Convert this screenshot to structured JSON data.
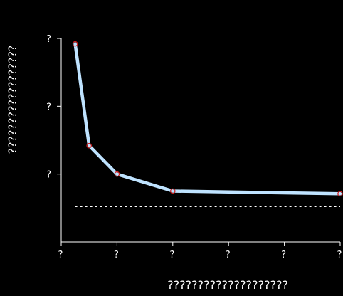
{
  "chart_data": {
    "type": "line",
    "title": "",
    "xlabel": "????????????????????",
    "ylabel": "??????????????????",
    "x_tick_labels": [
      "?",
      "?",
      "?",
      "?",
      "?",
      "?"
    ],
    "y_tick_labels": [
      "?",
      "?",
      "?"
    ],
    "series": [
      {
        "x": [
          0.25,
          0.5,
          1.0,
          2.0,
          5.0
        ],
        "y": [
          2.92,
          1.42,
          1.0,
          0.75,
          0.71
        ]
      }
    ],
    "reference_line": {
      "y": 0.52,
      "style": "dotted"
    },
    "xlim": [
      0,
      5
    ],
    "ylim": [
      0,
      3
    ],
    "grid": false,
    "colors": {
      "background": "#000000",
      "axes": "#ffffff",
      "line": "#bfe3ff",
      "marker": "#d42020",
      "reference_line": "#ffffff"
    }
  }
}
